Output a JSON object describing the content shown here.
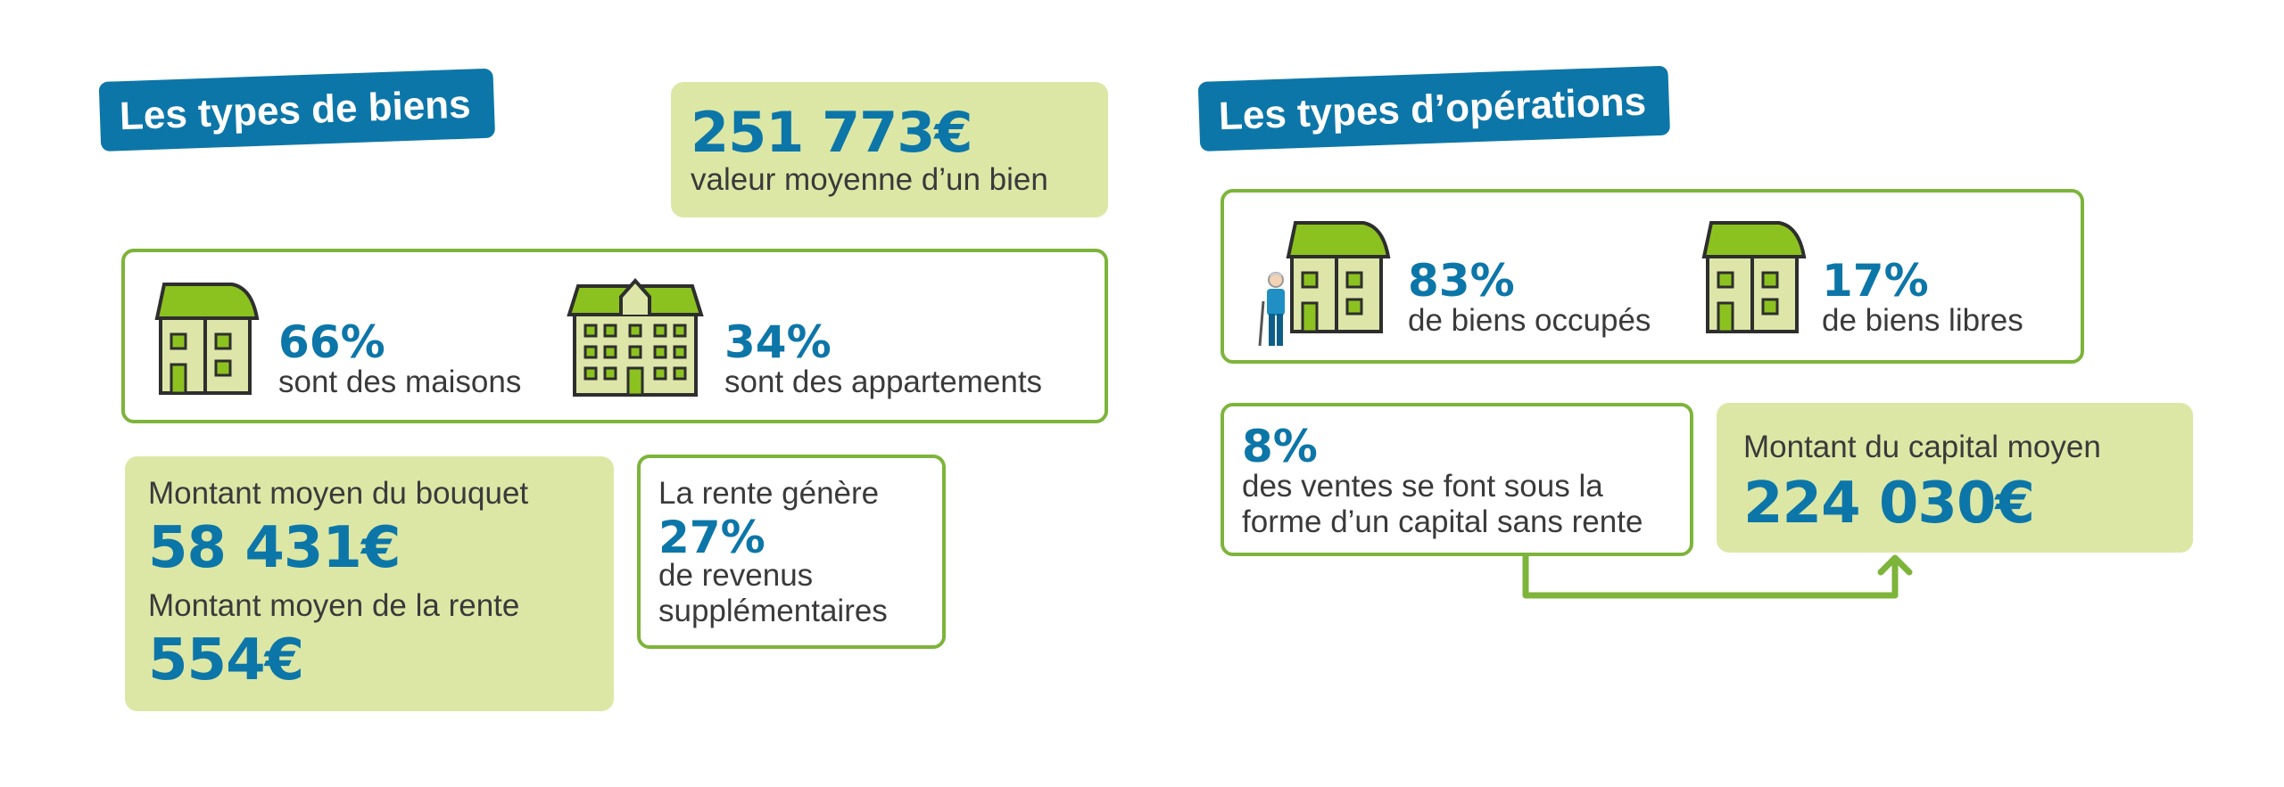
{
  "left": {
    "tag": "Les types de biens",
    "avg_value": {
      "amount": "251 773€",
      "label": "valeur moyenne d’un bien"
    },
    "types": [
      {
        "pct": "66%",
        "label": "sont des maisons"
      },
      {
        "pct": "34%",
        "label": "sont des appartements"
      }
    ],
    "amounts": {
      "bouquet_label": "Montant moyen du bouquet",
      "bouquet_value": "58 431€",
      "rente_label": "Montant moyen de la rente",
      "rente_value": "554€"
    },
    "rente_box": {
      "line1": "La rente génère",
      "pct": "27%",
      "line2": "de revenus",
      "line3": "supplémentaires"
    }
  },
  "right": {
    "tag": "Les types d’opérations",
    "occupancy": [
      {
        "pct": "83%",
        "label": "de biens occupés"
      },
      {
        "pct": "17%",
        "label": "de biens libres"
      }
    ],
    "capital_sales": {
      "pct": "8%",
      "line1": "des ventes se font sous la",
      "line2": "forme d’un capital sans rente"
    },
    "capital_avg": {
      "label": "Montant du capital moyen",
      "amount": "224 030€"
    }
  },
  "colors": {
    "blue": "#0d76a8",
    "green": "#7db43a",
    "light_green": "#dce7a6",
    "roof": "#8cc21f",
    "facade": "#dde6a8"
  },
  "icons": [
    "house-icon",
    "apartment-building-icon",
    "elderly-person-icon",
    "arrow-up-icon"
  ]
}
